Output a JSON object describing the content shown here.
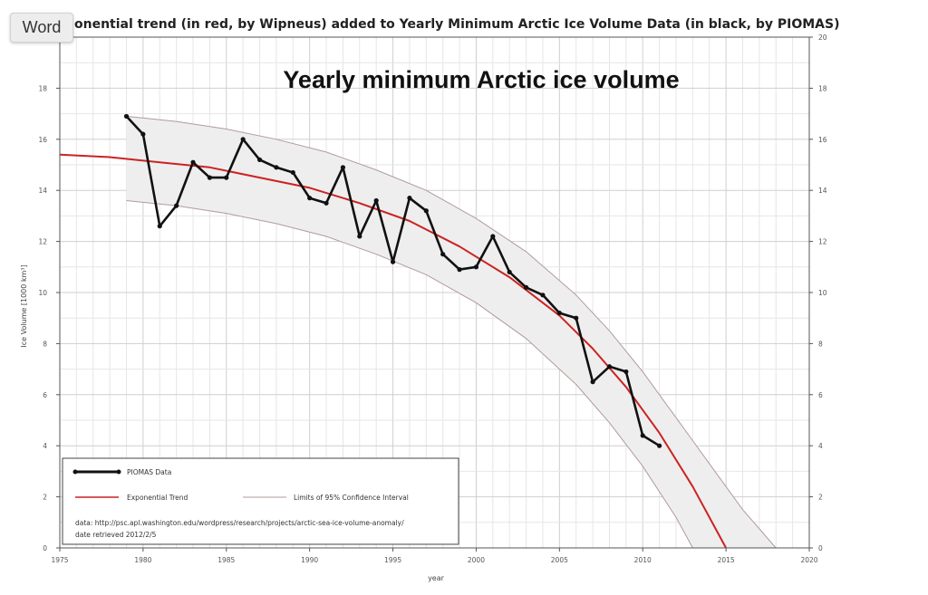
{
  "badge": {
    "label": "Word"
  },
  "chart_data": {
    "type": "line",
    "top_title": "onential trend (in red, by Wipneus) added to Yearly Minimum Arctic Ice Volume Data (in black, by PIOMAS)",
    "title": "Yearly minimum Arctic ice volume",
    "xlabel": "year",
    "ylabel": "Ice Volume [1000 km³]",
    "xlim": [
      1975,
      2020
    ],
    "ylim": [
      0,
      20
    ],
    "x_ticks": [
      1975,
      1980,
      1985,
      1990,
      1995,
      2000,
      2005,
      2010,
      2015,
      2020
    ],
    "y_ticks": [
      0,
      2,
      4,
      6,
      8,
      10,
      12,
      14,
      16,
      18
    ],
    "right_y_ticks": [
      0,
      2,
      4,
      6,
      8,
      10,
      12,
      14,
      16,
      18,
      20
    ],
    "grid": true,
    "legend_position": "bottom-left",
    "series": [
      {
        "name": "PIOMAS Data",
        "color": "#111111",
        "x": [
          1979,
          1980,
          1981,
          1982,
          1983,
          1984,
          1985,
          1986,
          1987,
          1988,
          1989,
          1990,
          1991,
          1992,
          1993,
          1994,
          1995,
          1996,
          1997,
          1998,
          1999,
          2000,
          2001,
          2002,
          2003,
          2004,
          2005,
          2006,
          2007,
          2008,
          2009,
          2010,
          2011
        ],
        "y": [
          16.9,
          16.2,
          12.6,
          13.4,
          15.1,
          14.5,
          14.5,
          16.0,
          15.2,
          14.9,
          14.7,
          13.7,
          13.5,
          14.9,
          12.2,
          13.6,
          11.2,
          13.7,
          13.2,
          11.5,
          10.9,
          11.0,
          12.2,
          10.8,
          10.2,
          9.9,
          9.2,
          9.0,
          6.5,
          7.1,
          6.9,
          4.4,
          4.0
        ]
      },
      {
        "name": "Exponential Trend",
        "color": "#cc2222",
        "x": [
          1975,
          1978,
          1981,
          1984,
          1987,
          1990,
          1993,
          1996,
          1999,
          2002,
          2005,
          2007,
          2009,
          2011,
          2013,
          2015
        ],
        "y": [
          15.4,
          15.3,
          15.1,
          14.9,
          14.5,
          14.1,
          13.5,
          12.8,
          11.8,
          10.6,
          9.1,
          7.8,
          6.3,
          4.5,
          2.4,
          0.0
        ]
      },
      {
        "name": "Limits of 95% Confidence Interval",
        "color": "#b49a9a",
        "upper": {
          "x": [
            1979,
            1982,
            1985,
            1988,
            1991,
            1994,
            1997,
            2000,
            2003,
            2006,
            2008,
            2010,
            2012,
            2014,
            2016,
            2018
          ],
          "y": [
            16.9,
            16.7,
            16.4,
            16.0,
            15.5,
            14.8,
            14.0,
            12.9,
            11.6,
            9.9,
            8.5,
            6.9,
            5.1,
            3.3,
            1.5,
            0.0
          ]
        },
        "lower": {
          "x": [
            1979,
            1982,
            1985,
            1988,
            1991,
            1994,
            1997,
            2000,
            2003,
            2006,
            2008,
            2010,
            2012,
            2013
          ],
          "y": [
            13.6,
            13.4,
            13.1,
            12.7,
            12.2,
            11.5,
            10.7,
            9.6,
            8.2,
            6.4,
            4.9,
            3.2,
            1.2,
            0.0
          ]
        }
      }
    ],
    "legend": {
      "entries": [
        "PIOMAS Data",
        "Exponential Trend",
        "Limits of 95% Confidence Interval"
      ],
      "note_line1": "data: http://psc.apl.washington.edu/wordpress/research/projects/arctic-sea-ice-volume-anomaly/",
      "note_line2": "date retrieved 2012/2/5"
    }
  }
}
